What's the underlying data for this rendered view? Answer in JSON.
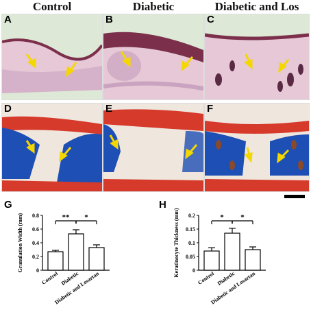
{
  "columns": [
    "Control",
    "Diabetic",
    "Diabetic and Los"
  ],
  "panel_labels": [
    "A",
    "B",
    "C",
    "D",
    "E",
    "F"
  ],
  "chart_labels": [
    "G",
    "H"
  ],
  "colors": {
    "he_bg": "#dde8d6",
    "he_tissue": "#e6c8d6",
    "he_dermis": "#c9a3c0",
    "he_dark": "#7b2f4a",
    "tri_blue": "#1e4fb5",
    "tri_red": "#d63a2b",
    "tri_pale": "#efe6dd",
    "arrow": "#f5d700",
    "bar_fill": "#ffffff",
    "ink": "#000000"
  },
  "chart_data": [
    {
      "type": "bar",
      "categories": [
        "Control",
        "Diabetic",
        "Diabetic and Losartan"
      ],
      "values": [
        0.27,
        0.53,
        0.33
      ],
      "errors": [
        0.02,
        0.06,
        0.04
      ],
      "ylabel": "Granulation Width (mm)",
      "ylim": [
        0,
        0.8
      ],
      "yticks": [
        "0",
        "0.2",
        "0.4",
        "0.6",
        "0.8"
      ],
      "significance": [
        "**",
        "*"
      ]
    },
    {
      "type": "bar",
      "categories": [
        "Control",
        "Diabetic",
        "Diabetic and Losartan"
      ],
      "values": [
        0.07,
        0.135,
        0.075
      ],
      "errors": [
        0.012,
        0.018,
        0.01
      ],
      "ylabel": "Keratinocyte Thickness (mm)",
      "ylim": [
        0,
        0.2
      ],
      "yticks": [
        "0",
        "0.05",
        "0.1",
        "0.15",
        "0.2"
      ],
      "significance": [
        "*",
        "*"
      ]
    }
  ]
}
